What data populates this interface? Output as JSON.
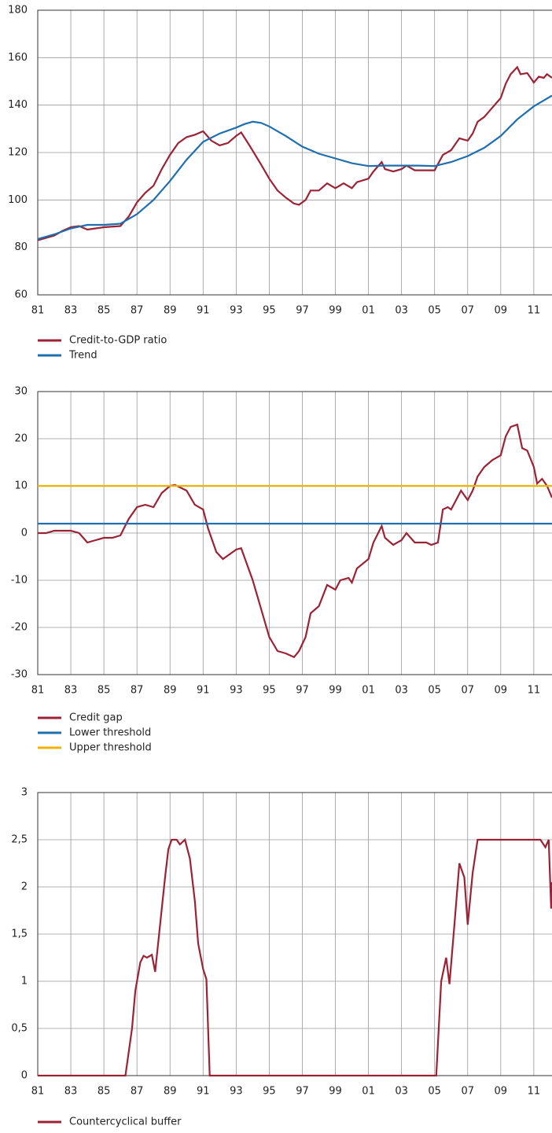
{
  "chart_data": [
    {
      "type": "line",
      "xlim": [
        1981,
        2012.1
      ],
      "ylim": [
        60,
        180
      ],
      "grid": true,
      "xticks": [
        {
          "value": 1981,
          "label": "81"
        },
        {
          "value": 1983,
          "label": "83"
        },
        {
          "value": 1985,
          "label": "85"
        },
        {
          "value": 1987,
          "label": "87"
        },
        {
          "value": 1989,
          "label": "89"
        },
        {
          "value": 1991,
          "label": "91"
        },
        {
          "value": 1993,
          "label": "93"
        },
        {
          "value": 1995,
          "label": "95"
        },
        {
          "value": 1997,
          "label": "97"
        },
        {
          "value": 1999,
          "label": "99"
        },
        {
          "value": 2001,
          "label": "01"
        },
        {
          "value": 2003,
          "label": "03"
        },
        {
          "value": 2005,
          "label": "05"
        },
        {
          "value": 2007,
          "label": "07"
        },
        {
          "value": 2009,
          "label": "09"
        },
        {
          "value": 2011,
          "label": "11"
        }
      ],
      "yticks": [
        60,
        80,
        100,
        120,
        140,
        160,
        180
      ],
      "series": [
        {
          "name": "Credit-to-GDP ratio",
          "color": "#9b2335",
          "x": [
            1981,
            1982,
            1982.5,
            1983,
            1983.5,
            1984,
            1984.5,
            1985,
            1986,
            1986.5,
            1987,
            1987.5,
            1988,
            1988.5,
            1989,
            1989.5,
            1990,
            1990.5,
            1991,
            1991.5,
            1992,
            1992.5,
            1993,
            1993.3,
            1993.8,
            1994.5,
            1995,
            1995.5,
            1996,
            1996.5,
            1996.8,
            1997.2,
            1997.5,
            1998,
            1998.5,
            1999,
            1999.5,
            2000,
            2000.3,
            2001,
            2001.3,
            2001.8,
            2002,
            2002.5,
            2003,
            2003.3,
            2003.8,
            2004.5,
            2005,
            2005.5,
            2006,
            2006.5,
            2007,
            2007.3,
            2007.6,
            2008,
            2008.5,
            2009,
            2009.3,
            2009.6,
            2010,
            2010.2,
            2010.6,
            2011,
            2011.3,
            2011.6,
            2011.8,
            2012.1
          ],
          "values": [
            83,
            85,
            87,
            88.5,
            89,
            87.5,
            88,
            88.5,
            89,
            93,
            99,
            103,
            106,
            113,
            119,
            124,
            126.5,
            127.5,
            129,
            125,
            123,
            124,
            127,
            128.5,
            123,
            115,
            109,
            104,
            101,
            98.5,
            98,
            100,
            104,
            104,
            107,
            105,
            107,
            105,
            107.5,
            109,
            112,
            116,
            113,
            112,
            113,
            114.5,
            112.5,
            112.5,
            112.5,
            119,
            121,
            126,
            125,
            128,
            133,
            135,
            139,
            143,
            149,
            153,
            156,
            153,
            153.5,
            149.5,
            152,
            151.5,
            153,
            151.5
          ]
        },
        {
          "name": "Trend",
          "color": "#1f6fae",
          "x": [
            1981,
            1982,
            1983,
            1984,
            1985,
            1986,
            1987,
            1988,
            1989,
            1990,
            1991,
            1992,
            1993,
            1993.5,
            1994,
            1994.5,
            1995,
            1996,
            1997,
            1998,
            1999,
            2000,
            2001,
            2002,
            2003,
            2004,
            2005,
            2006,
            2007,
            2008,
            2009,
            2010,
            2011,
            2012.1
          ],
          "values": [
            83.5,
            85.5,
            88,
            89.5,
            89.5,
            90,
            94,
            100,
            108,
            117,
            124.5,
            128,
            130.5,
            132,
            133,
            132.5,
            131,
            127,
            122.5,
            119.5,
            117.5,
            115.5,
            114.3,
            114.5,
            114.5,
            114.5,
            114.3,
            116,
            118.5,
            122,
            127,
            134,
            139.5,
            144
          ]
        }
      ]
    },
    {
      "type": "line",
      "xlim": [
        1981,
        2012.1
      ],
      "ylim": [
        -30,
        30
      ],
      "grid": true,
      "xticks": [
        {
          "value": 1981,
          "label": "81"
        },
        {
          "value": 1983,
          "label": "83"
        },
        {
          "value": 1985,
          "label": "85"
        },
        {
          "value": 1987,
          "label": "87"
        },
        {
          "value": 1989,
          "label": "89"
        },
        {
          "value": 1991,
          "label": "91"
        },
        {
          "value": 1993,
          "label": "93"
        },
        {
          "value": 1995,
          "label": "95"
        },
        {
          "value": 1997,
          "label": "97"
        },
        {
          "value": 1999,
          "label": "99"
        },
        {
          "value": 2001,
          "label": "01"
        },
        {
          "value": 2003,
          "label": "03"
        },
        {
          "value": 2005,
          "label": "05"
        },
        {
          "value": 2007,
          "label": "07"
        },
        {
          "value": 2009,
          "label": "09"
        },
        {
          "value": 2011,
          "label": "11"
        }
      ],
      "yticks": [
        -30,
        -20,
        -10,
        0,
        10,
        20,
        30
      ],
      "series": [
        {
          "name": "Credit gap",
          "color": "#9b2335",
          "x": [
            1981,
            1981.5,
            1982,
            1982.5,
            1983,
            1983.5,
            1984,
            1984.5,
            1985,
            1985.5,
            1986,
            1986.5,
            1987,
            1987.5,
            1988,
            1988.5,
            1989,
            1989.3,
            1990,
            1990.5,
            1991,
            1991.3,
            1991.8,
            1992.2,
            1992.8,
            1993,
            1993.3,
            1994,
            1994.5,
            1995,
            1995.5,
            1996,
            1996.5,
            1996.8,
            1997.2,
            1997.5,
            1998,
            1998.5,
            1999,
            1999.3,
            1999.8,
            2000,
            2000.3,
            2001,
            2001.3,
            2001.8,
            2002,
            2002.5,
            2003,
            2003.3,
            2003.8,
            2004.5,
            2004.8,
            2005.2,
            2005.5,
            2005.8,
            2006,
            2006.6,
            2007,
            2007.3,
            2007.6,
            2008,
            2008.5,
            2009,
            2009.3,
            2009.6,
            2010,
            2010.3,
            2010.6,
            2011,
            2011.2,
            2011.5,
            2011.8,
            2012.1
          ],
          "values": [
            0,
            0,
            0.5,
            0.5,
            0.5,
            0,
            -2,
            -1.5,
            -1,
            -1,
            -0.5,
            3,
            5.5,
            6,
            5.5,
            8.5,
            10,
            10.2,
            9,
            6,
            5,
            1,
            -4,
            -5.5,
            -4,
            -3.5,
            -3.2,
            -10,
            -16,
            -22,
            -25,
            -25.5,
            -26.3,
            -25,
            -22,
            -17,
            -15.5,
            -11,
            -12,
            -10,
            -9.5,
            -10.5,
            -7.5,
            -5.5,
            -2,
            1.5,
            -1,
            -2.5,
            -1.5,
            0,
            -2,
            -2,
            -2.5,
            -2,
            5,
            5.5,
            5,
            9,
            7,
            9,
            12,
            14,
            15.5,
            16.5,
            20.5,
            22.5,
            23,
            18,
            17.5,
            14,
            10.5,
            11.5,
            10,
            7.5
          ]
        },
        {
          "name": "Lower threshold",
          "color": "#1f6fae",
          "x": [
            1981,
            2012.1
          ],
          "values": [
            2,
            2
          ]
        },
        {
          "name": "Upper threshold",
          "color": "#f0b400",
          "x": [
            1981,
            2012.1
          ],
          "values": [
            10,
            10
          ]
        }
      ]
    },
    {
      "type": "line",
      "xlim": [
        1981,
        2012.1
      ],
      "ylim": [
        0,
        3
      ],
      "grid": true,
      "xticks": [
        {
          "value": 1981,
          "label": "81"
        },
        {
          "value": 1983,
          "label": "83"
        },
        {
          "value": 1985,
          "label": "85"
        },
        {
          "value": 1987,
          "label": "87"
        },
        {
          "value": 1989,
          "label": "89"
        },
        {
          "value": 1991,
          "label": "91"
        },
        {
          "value": 1993,
          "label": "93"
        },
        {
          "value": 1995,
          "label": "95"
        },
        {
          "value": 1997,
          "label": "97"
        },
        {
          "value": 1999,
          "label": "99"
        },
        {
          "value": 2001,
          "label": "01"
        },
        {
          "value": 2003,
          "label": "03"
        },
        {
          "value": 2005,
          "label": "05"
        },
        {
          "value": 2007,
          "label": "07"
        },
        {
          "value": 2009,
          "label": "09"
        },
        {
          "value": 2011,
          "label": "11"
        }
      ],
      "yticks": [
        0,
        {
          "value": 0.5,
          "label": "0,5"
        },
        1,
        {
          "value": 1.5,
          "label": "1,5"
        },
        2,
        {
          "value": 2.5,
          "label": "2,5"
        },
        3
      ],
      "series": [
        {
          "name": "Countercyclical buffer",
          "color": "#9b2335",
          "x": [
            1981,
            1986.3,
            1986.7,
            1986.9,
            1987.2,
            1987.4,
            1987.6,
            1987.9,
            1988.1,
            1988.4,
            1988.7,
            1988.9,
            1989.1,
            1989.4,
            1989.6,
            1989.9,
            1990.2,
            1990.5,
            1990.7,
            1991,
            1991.2,
            1991.4,
            2005.1,
            2005.4,
            2005.7,
            2005.9,
            2006.2,
            2006.5,
            2006.8,
            2007,
            2007.3,
            2007.6,
            2011.4,
            2011.7,
            2011.9,
            2012.05,
            2012.1
          ],
          "values": [
            0,
            0,
            0.5,
            0.9,
            1.2,
            1.27,
            1.25,
            1.28,
            1.1,
            1.6,
            2.1,
            2.4,
            2.5,
            2.5,
            2.45,
            2.5,
            2.3,
            1.85,
            1.4,
            1.13,
            1.02,
            0,
            0,
            1,
            1.25,
            0.97,
            1.6,
            2.25,
            2.1,
            1.6,
            2.15,
            2.5,
            2.5,
            2.42,
            2.5,
            1.77,
            2.05
          ]
        }
      ]
    }
  ]
}
